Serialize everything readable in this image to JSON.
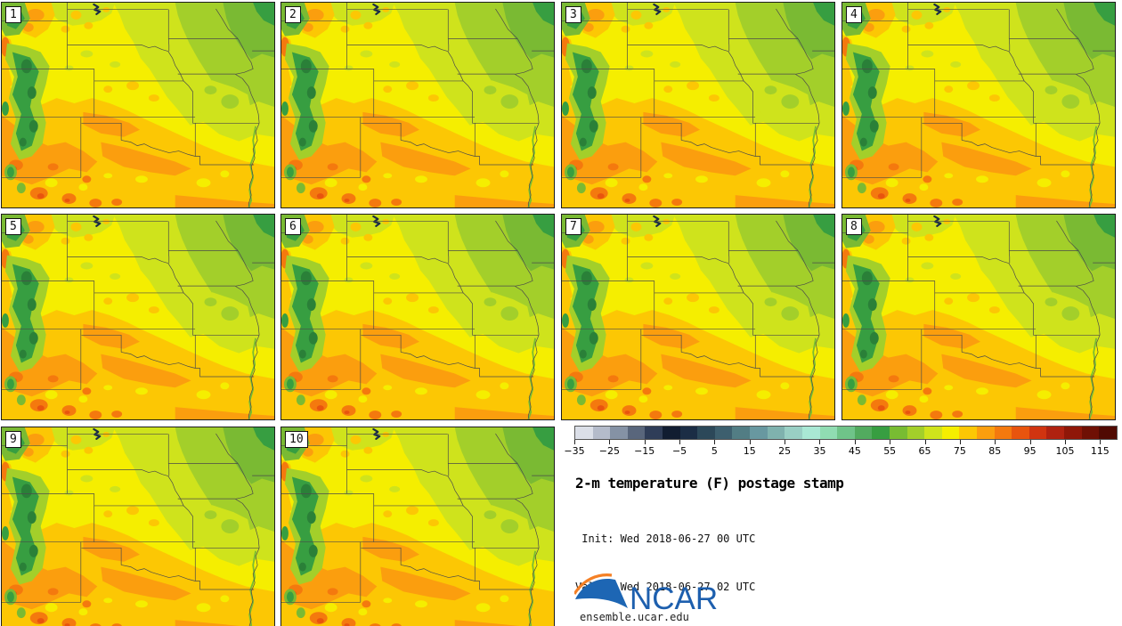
{
  "panel_labels": [
    "1",
    "2",
    "3",
    "4",
    "5",
    "6",
    "7",
    "8",
    "9",
    "10"
  ],
  "title": "2-m temperature (F) postage stamp",
  "init_line": " Init: Wed 2018-06-27 00 UTC",
  "valid_line": "Valid: Wed 2018-06-27 02 UTC",
  "logo": {
    "text": "NCAR",
    "site": "ensemble.ucar.edu",
    "blue": "#1d5fae",
    "orange": "#f58025"
  },
  "legend": {
    "min": -35,
    "max": 120,
    "step": 5,
    "tick_values": [
      -35,
      -25,
      -15,
      -5,
      5,
      15,
      25,
      35,
      45,
      55,
      65,
      75,
      85,
      95,
      105,
      115
    ],
    "tick_labels": [
      "−35",
      "−25",
      "−15",
      "−5",
      "5",
      "15",
      "25",
      "35",
      "45",
      "55",
      "65",
      "75",
      "85",
      "95",
      "105",
      "115"
    ],
    "colors": [
      "#dbdfe8",
      "#b4bbca",
      "#8592a5",
      "#59667c",
      "#2f3d58",
      "#111d31",
      "#1b2d45",
      "#2c4859",
      "#3d5f6e",
      "#527d84",
      "#6898a0",
      "#7fb2ae",
      "#99cfc4",
      "#a9e8d4",
      "#90dcb2",
      "#6fc489",
      "#52ab5f",
      "#379e41",
      "#78bc32",
      "#a3cf2a",
      "#cfe31c",
      "#f5ee00",
      "#fcc704",
      "#fb9e0e",
      "#f4790e",
      "#e8540e",
      "#d03410",
      "#b02210",
      "#8f1708",
      "#6f1004",
      "#500a02"
    ]
  },
  "chart_data": {
    "type": "heatmap",
    "title": "2-m temperature (F) postage stamp",
    "subtitle_lines": [
      " Init: Wed 2018-06-27 00 UTC",
      "Valid: Wed 2018-06-27 02 UTC"
    ],
    "panels": [
      "1",
      "2",
      "3",
      "4",
      "5",
      "6",
      "7",
      "8",
      "9",
      "10"
    ],
    "variable": "2-m temperature (F)",
    "colorbar": {
      "range": [
        -35,
        120
      ],
      "interval": 5,
      "tick_labels": [
        "−35",
        "−25",
        "−15",
        "−5",
        "5",
        "15",
        "25",
        "35",
        "45",
        "55",
        "65",
        "75",
        "85",
        "95",
        "105",
        "115"
      ],
      "colors": [
        "#dbdfe8",
        "#b4bbca",
        "#8592a5",
        "#59667c",
        "#2f3d58",
        "#111d31",
        "#1b2d45",
        "#2c4859",
        "#3d5f6e",
        "#527d84",
        "#6898a0",
        "#7fb2ae",
        "#99cfc4",
        "#a9e8d4",
        "#90dcb2",
        "#6fc489",
        "#52ab5f",
        "#379e41",
        "#78bc32",
        "#a3cf2a",
        "#cfe31c",
        "#f5ee00",
        "#fcc704",
        "#fb9e0e",
        "#f4790e",
        "#e8540e",
        "#d03410",
        "#b02210",
        "#8f1708",
        "#6f1004",
        "#500a02"
      ],
      "legend_position": "bottom-right of panel grid"
    },
    "notes": "10 ensemble-member maps of the central US; cool greens over the Rockies and upper Midwest (~55-70 F), yellows in the central plains (~70-75 F), oranges/reds to the south and southwest (~75-95 F)."
  }
}
